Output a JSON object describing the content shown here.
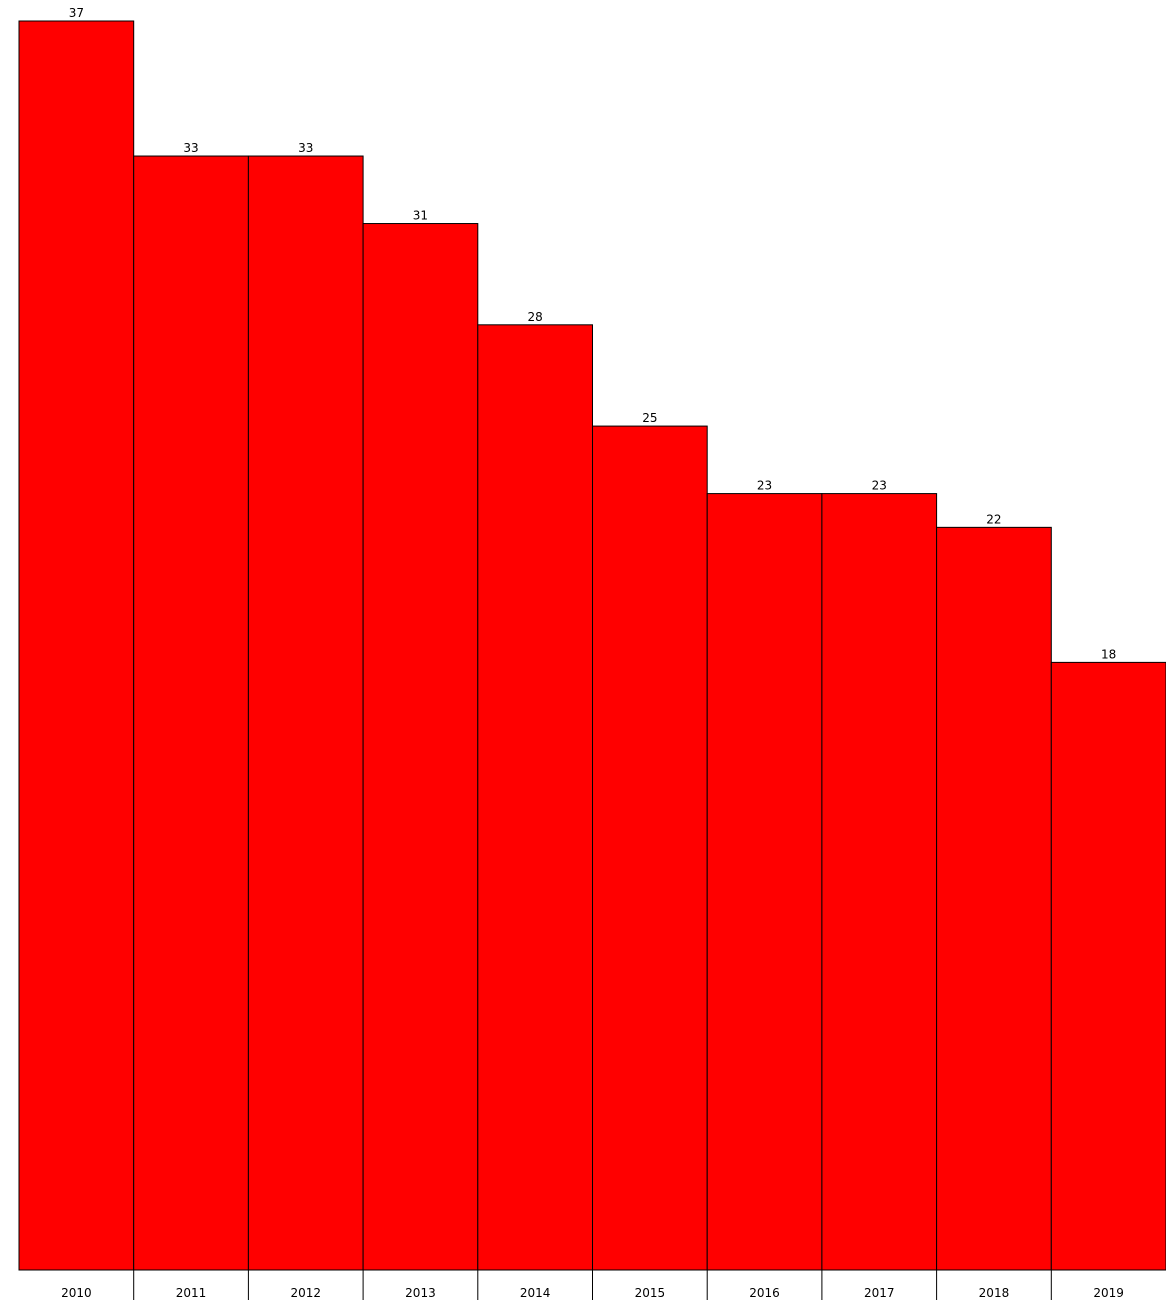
{
  "chart_data": {
    "type": "bar",
    "categories": [
      "2010",
      "2011",
      "2012",
      "2013",
      "2014",
      "2015",
      "2016",
      "2017",
      "2018",
      "2019"
    ],
    "values": [
      37,
      33,
      33,
      31,
      28,
      25,
      23,
      23,
      22,
      18
    ],
    "data_labels": [
      "37",
      "33",
      "33",
      "31",
      "28",
      "25",
      "23",
      "23",
      "22",
      "18"
    ],
    "title": "",
    "xlabel": "",
    "ylabel": "",
    "ylim": [
      0,
      37
    ],
    "grid": false,
    "legend": "none",
    "bar_color": "#ff0000",
    "edge_color": "#000000"
  }
}
